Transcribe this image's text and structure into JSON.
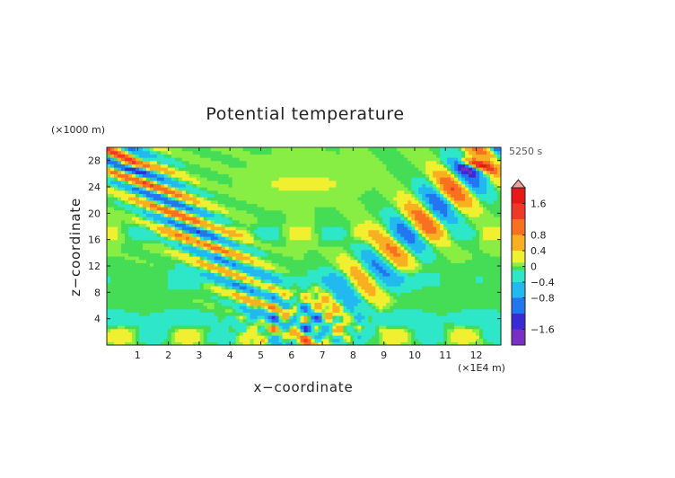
{
  "chart_data": {
    "type": "heatmap",
    "title": "Potential temperature",
    "xlabel": "x−coordinate",
    "ylabel": "z−coordinate",
    "x_unit": "(×1E4 m)",
    "y_unit": "(×1000 m)",
    "time_label": "5250 s",
    "xlim": [
      0,
      12.8
    ],
    "ylim": [
      0,
      30
    ],
    "x_ticks": [
      1,
      2,
      3,
      4,
      5,
      6,
      7,
      8,
      9,
      10,
      11,
      12
    ],
    "y_ticks": [
      4,
      8,
      12,
      16,
      20,
      24,
      28
    ],
    "colorbar": {
      "min": -2.0,
      "max": 2.0,
      "extend_max": true,
      "tick_values": [
        1.6,
        0.8,
        0.4,
        0,
        -0.4,
        -0.8,
        -1.6
      ],
      "tick_labels": [
        "1.6",
        "0.8",
        "0.4",
        "0",
        "−0.4",
        "−0.8",
        "−1.6"
      ],
      "levels": [
        {
          "from": -2.0,
          "to": -1.6,
          "color": "#7a2ec4"
        },
        {
          "from": -1.6,
          "to": -1.2,
          "color": "#3a2ad6"
        },
        {
          "from": -1.2,
          "to": -0.8,
          "color": "#2277f0"
        },
        {
          "from": -0.8,
          "to": -0.4,
          "color": "#22b8f0"
        },
        {
          "from": -0.4,
          "to": -0.1,
          "color": "#2ee6c8"
        },
        {
          "from": -0.1,
          "to": 0.0,
          "color": "#44dd55"
        },
        {
          "from": 0.0,
          "to": 0.1,
          "color": "#88ee44"
        },
        {
          "from": 0.1,
          "to": 0.4,
          "color": "#f0f030"
        },
        {
          "from": 0.4,
          "to": 0.8,
          "color": "#f8b020"
        },
        {
          "from": 0.8,
          "to": 1.2,
          "color": "#f87020"
        },
        {
          "from": 1.2,
          "to": 1.6,
          "color": "#f03828"
        },
        {
          "from": 1.6,
          "to": 2.0,
          "color": "#e81818"
        }
      ],
      "overflow_color": "#f0a0a0"
    },
    "field_features": [
      {
        "kind": "gravity-wave-beam",
        "side": "left",
        "x_at_bottom": 6.4,
        "x_at_top": 0.3,
        "z_range": [
          0.5,
          29.5
        ],
        "amplitude": 1.4
      },
      {
        "kind": "gravity-wave-beam",
        "side": "right",
        "x_at_bottom": 6.4,
        "x_at_top": 12.5,
        "z_range": [
          0.5,
          29.5
        ],
        "amplitude": 1.4
      },
      {
        "kind": "warm-patch",
        "x_center": 6.4,
        "z_center": 24.5,
        "value": 0.3
      },
      {
        "kind": "cold-band",
        "z_center": 10.0,
        "x_range": [
          2.0,
          10.8
        ],
        "value": -0.35
      },
      {
        "kind": "cold-band",
        "z_center": 4.0,
        "x_range": [
          0.0,
          12.8
        ],
        "value": -0.3
      },
      {
        "kind": "corner-extrema",
        "x": 0.8,
        "z": 27.5,
        "min": -1.0,
        "max": 1.5
      },
      {
        "kind": "corner-extrema",
        "x": 12.0,
        "z": 27.5,
        "min": -1.0,
        "max": 1.5
      }
    ]
  }
}
